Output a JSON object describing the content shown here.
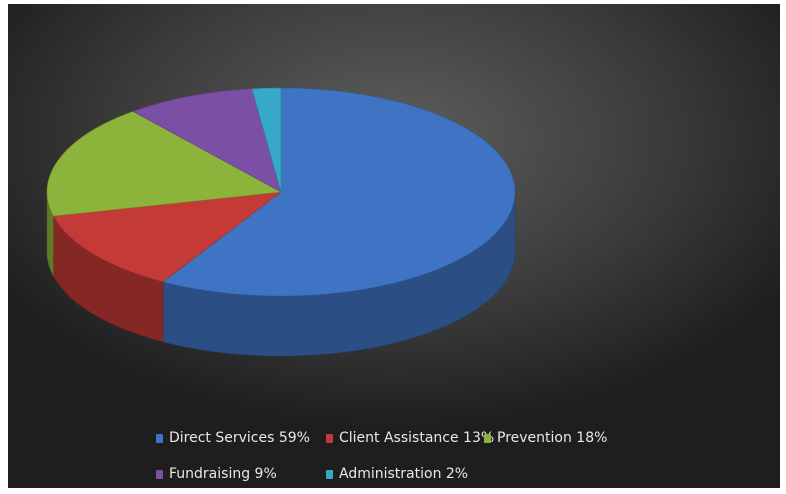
{
  "chart_data": {
    "type": "pie",
    "labels": [
      "Direct Services 59%",
      "Client Assistance 13%",
      "Prevention 18%",
      "Fundraising 9%",
      "Administration 2%"
    ],
    "values": [
      59,
      13,
      18,
      9,
      2
    ],
    "colors": [
      "#3f74c4",
      "#c43a36",
      "#8db43a",
      "#7b4fa6",
      "#35a9c6"
    ],
    "legend_position": "bottom",
    "style": "3d"
  }
}
